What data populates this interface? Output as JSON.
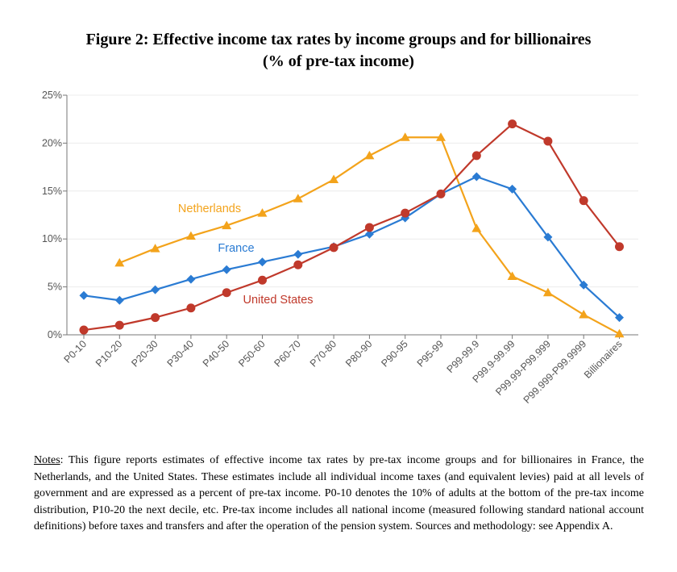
{
  "figure": {
    "title_line1": "Figure 2: Effective income tax rates by income groups and for billionaires",
    "title_line2": "(% of pre-tax income)"
  },
  "chart_data": {
    "type": "line",
    "categories": [
      "P0-10",
      "P10-20",
      "P20-30",
      "P30-40",
      "P40-50",
      "P50-60",
      "P60-70",
      "P70-80",
      "P80-90",
      "P90-95",
      "P95-99",
      "P99-99.9",
      "P99.9-99.99",
      "P99.99-P99.999",
      "P99.999-P99.9999",
      "Billionaires"
    ],
    "yticks": [
      "0%",
      "5%",
      "10%",
      "15%",
      "20%",
      "25%"
    ],
    "ylim": [
      0,
      25
    ],
    "grid": true,
    "series": [
      {
        "name": "Netherlands",
        "color": "#f3a31b",
        "marker": "triangle",
        "values": [
          null,
          7.5,
          9.0,
          10.3,
          11.4,
          12.7,
          14.2,
          16.2,
          18.7,
          20.6,
          20.6,
          11.1,
          6.1,
          4.4,
          2.1,
          0.1
        ]
      },
      {
        "name": "France",
        "color": "#2a7bd3",
        "marker": "diamond",
        "values": [
          4.1,
          3.6,
          4.7,
          5.8,
          6.8,
          7.6,
          8.4,
          9.2,
          10.5,
          12.2,
          14.7,
          16.5,
          15.2,
          10.2,
          5.2,
          1.8
        ]
      },
      {
        "name": "United States",
        "color": "#c0392b",
        "marker": "circle",
        "values": [
          0.5,
          1.0,
          1.8,
          2.8,
          4.4,
          5.7,
          7.3,
          9.1,
          11.2,
          12.7,
          14.7,
          18.7,
          22.0,
          20.2,
          14.0,
          9.2
        ]
      }
    ]
  },
  "notes": {
    "label": "Notes",
    "text": ": This figure reports estimates of effective income tax rates by pre-tax income groups and for billionaires in France, the Netherlands, and the United States. These estimates include all individual income taxes (and equivalent levies) paid at all levels of government and are expressed as a percent of pre-tax income. P0-10 denotes the 10% of adults at the bottom of the pre-tax income distribution, P10-20 the next decile, etc. Pre-tax income includes all national income (measured following standard national account definitions) before taxes and transfers and after the operation of the pension system. Sources and methodology: see Appendix A."
  }
}
